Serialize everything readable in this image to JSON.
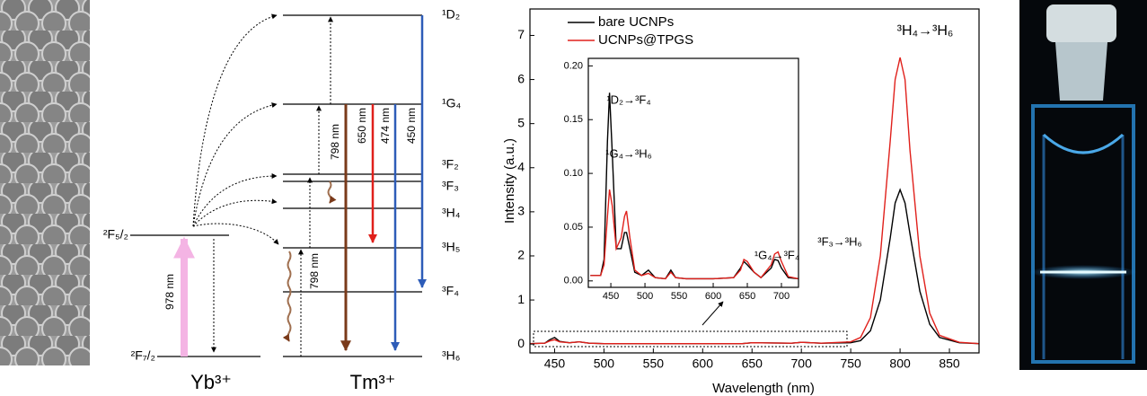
{
  "diagram": {
    "yb_levels": [
      "²F₅/₂",
      "²F₇/₂"
    ],
    "tm_levels": [
      "¹D₂",
      "¹G₄",
      "³F₂",
      "³F₃",
      "³H₄",
      "³H₅",
      "³F₄",
      "³H₆"
    ],
    "transitions": [
      "978 nm",
      "798 nm",
      "650 nm",
      "474 nm",
      "450 nm",
      "798 nm"
    ],
    "ions": [
      "Yb³⁺",
      "Tm³⁺"
    ]
  },
  "chart_data": [
    {
      "type": "line",
      "xlabel": "Wavelength (nm)",
      "ylabel": "Intensity (a.u.)",
      "xlim": [
        425,
        880
      ],
      "ylim": [
        -0.2,
        7.6
      ],
      "xticks": [
        450,
        500,
        550,
        600,
        650,
        700,
        750,
        800,
        850
      ],
      "yticks": [
        0,
        1,
        2,
        3,
        4,
        5,
        6,
        7
      ],
      "legend": "upper left",
      "annotations": [
        "³H₄→³H₆"
      ],
      "x": [
        425,
        440,
        445,
        450,
        455,
        465,
        475,
        485,
        500,
        550,
        600,
        640,
        650,
        690,
        700,
        720,
        750,
        760,
        770,
        780,
        790,
        795,
        800,
        805,
        810,
        820,
        830,
        840,
        860,
        880
      ],
      "series": [
        {
          "name": "bare UCNPs",
          "color": "#000000",
          "values": [
            0.01,
            0.02,
            0.1,
            0.15,
            0.06,
            0.03,
            0.05,
            0.02,
            0.01,
            0.01,
            0.01,
            0.01,
            0.03,
            0.02,
            0.04,
            0.02,
            0.03,
            0.08,
            0.3,
            1.0,
            2.4,
            3.2,
            3.5,
            3.2,
            2.5,
            1.2,
            0.45,
            0.15,
            0.03,
            0.01
          ]
        },
        {
          "name": "UCNPs@TPGS",
          "color": "#e0201b",
          "values": [
            0.01,
            0.02,
            0.07,
            0.1,
            0.05,
            0.03,
            0.05,
            0.02,
            0.01,
            0.01,
            0.01,
            0.01,
            0.03,
            0.02,
            0.04,
            0.02,
            0.05,
            0.15,
            0.6,
            2.0,
            4.6,
            6.0,
            6.5,
            6.0,
            4.4,
            2.0,
            0.7,
            0.2,
            0.04,
            0.01
          ]
        }
      ]
    },
    {
      "type": "line",
      "xlim": [
        417,
        725
      ],
      "ylim": [
        -0.006,
        0.207
      ],
      "xticks": [
        450,
        500,
        550,
        600,
        650,
        700
      ],
      "yticks": [
        {
          "value": 0,
          "label": "0.00"
        },
        {
          "value": 0.05,
          "label": "0.05"
        },
        {
          "value": 0.1,
          "label": "0.10"
        },
        {
          "value": 0.15,
          "label": "0.15"
        },
        {
          "value": 0.2,
          "label": "0.20"
        }
      ],
      "annotations": [
        "¹D₂→³F₄",
        "¹G₄→³H₆",
        "¹G₄→³F₄",
        "³F₃→³H₆"
      ],
      "x": [
        420,
        435,
        440,
        445,
        448,
        452,
        458,
        465,
        470,
        473,
        478,
        485,
        495,
        505,
        515,
        530,
        538,
        545,
        560,
        600,
        630,
        640,
        645,
        650,
        660,
        670,
        685,
        690,
        695,
        700,
        710,
        725
      ],
      "series": [
        {
          "color": "#000000",
          "values": [
            0.005,
            0.005,
            0.02,
            0.13,
            0.175,
            0.12,
            0.03,
            0.03,
            0.045,
            0.045,
            0.03,
            0.008,
            0.005,
            0.01,
            0.003,
            0.002,
            0.01,
            0.003,
            0.002,
            0.002,
            0.003,
            0.012,
            0.018,
            0.015,
            0.008,
            0.003,
            0.012,
            0.02,
            0.019,
            0.012,
            0.003,
            0.002
          ]
        },
        {
          "color": "#e0201b",
          "values": [
            0.005,
            0.005,
            0.015,
            0.06,
            0.085,
            0.07,
            0.03,
            0.04,
            0.06,
            0.065,
            0.04,
            0.01,
            0.005,
            0.007,
            0.003,
            0.002,
            0.008,
            0.003,
            0.002,
            0.002,
            0.003,
            0.01,
            0.02,
            0.018,
            0.008,
            0.003,
            0.015,
            0.025,
            0.027,
            0.018,
            0.004,
            0.002
          ]
        }
      ]
    }
  ]
}
